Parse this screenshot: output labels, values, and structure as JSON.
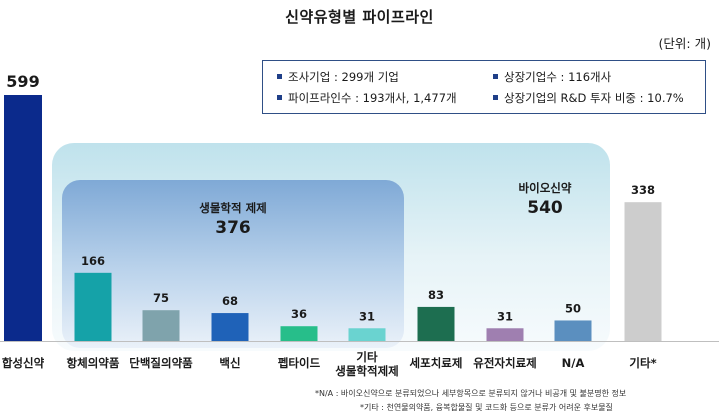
{
  "title": "신약유형별 파이프라인",
  "unit": "(단위: 개)",
  "info": {
    "survey": "조사기업 : 299개 기업",
    "listed": "상장기업수 : 116개사",
    "pipelines": "파이프라인수 : 193개사, 1,477개",
    "rnd": "상장기업의 R&D 투자 비중 : 10.7%"
  },
  "regions": {
    "bio": {
      "label": "바이오신약",
      "value": "540"
    },
    "chem": {
      "label": "생물학적 제제",
      "value": "376"
    }
  },
  "notes": [
    "*N/A : 바이오신약으로 분류되었으나 세부항목으로 분류되지 않거나 비공개 및 불분명한 정보",
    "*기타 : 천연물의약품, 융복합물질 및 코드화 등으로 분류가 어려운 후보물질"
  ],
  "chart_data": {
    "type": "bar",
    "title": "신약유형별 파이프라인",
    "categories": [
      "합성신약",
      "항체의약품",
      "단백질의약품",
      "백신",
      "펩타이드",
      "기타\n생물학적제제",
      "세포치료제",
      "유전자치료제",
      "N/A",
      "기타*"
    ],
    "values": [
      599,
      166,
      75,
      68,
      36,
      31,
      83,
      31,
      50,
      338
    ],
    "colors": [
      "#0b2a8c",
      "#15a2a8",
      "#7fa3ac",
      "#1f62b8",
      "#27be8a",
      "#6ad3d0",
      "#1d6e50",
      "#9f7fb0",
      "#5b8fbf",
      "#cdcdcd"
    ],
    "ylim": [
      0,
      620
    ],
    "grid": false,
    "legend": "none"
  }
}
